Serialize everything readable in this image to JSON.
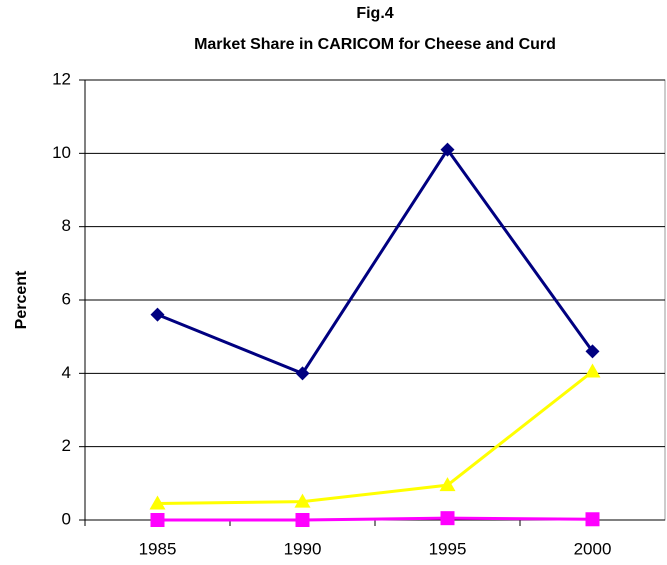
{
  "chart_data": {
    "type": "line",
    "title": "Fig.4",
    "subtitle": "Market Share in CARICOM for Cheese and Curd",
    "y_label": "Percent",
    "categories": [
      "1985",
      "1990",
      "1995",
      "2000"
    ],
    "series": [
      {
        "color": "#000080",
        "marker": "diamond",
        "values": [
          5.6,
          4.0,
          10.1,
          4.6
        ]
      },
      {
        "color": "#ffff00",
        "marker": "triangle",
        "values": [
          0.45,
          0.5,
          0.95,
          4.05
        ]
      },
      {
        "color": "#ff00ff",
        "marker": "square",
        "values": [
          0,
          0,
          0.05,
          0.02
        ]
      }
    ],
    "ylim": [
      0,
      12
    ],
    "yticks": [
      0,
      2,
      4,
      6,
      8,
      10,
      12
    ],
    "grid": true
  }
}
